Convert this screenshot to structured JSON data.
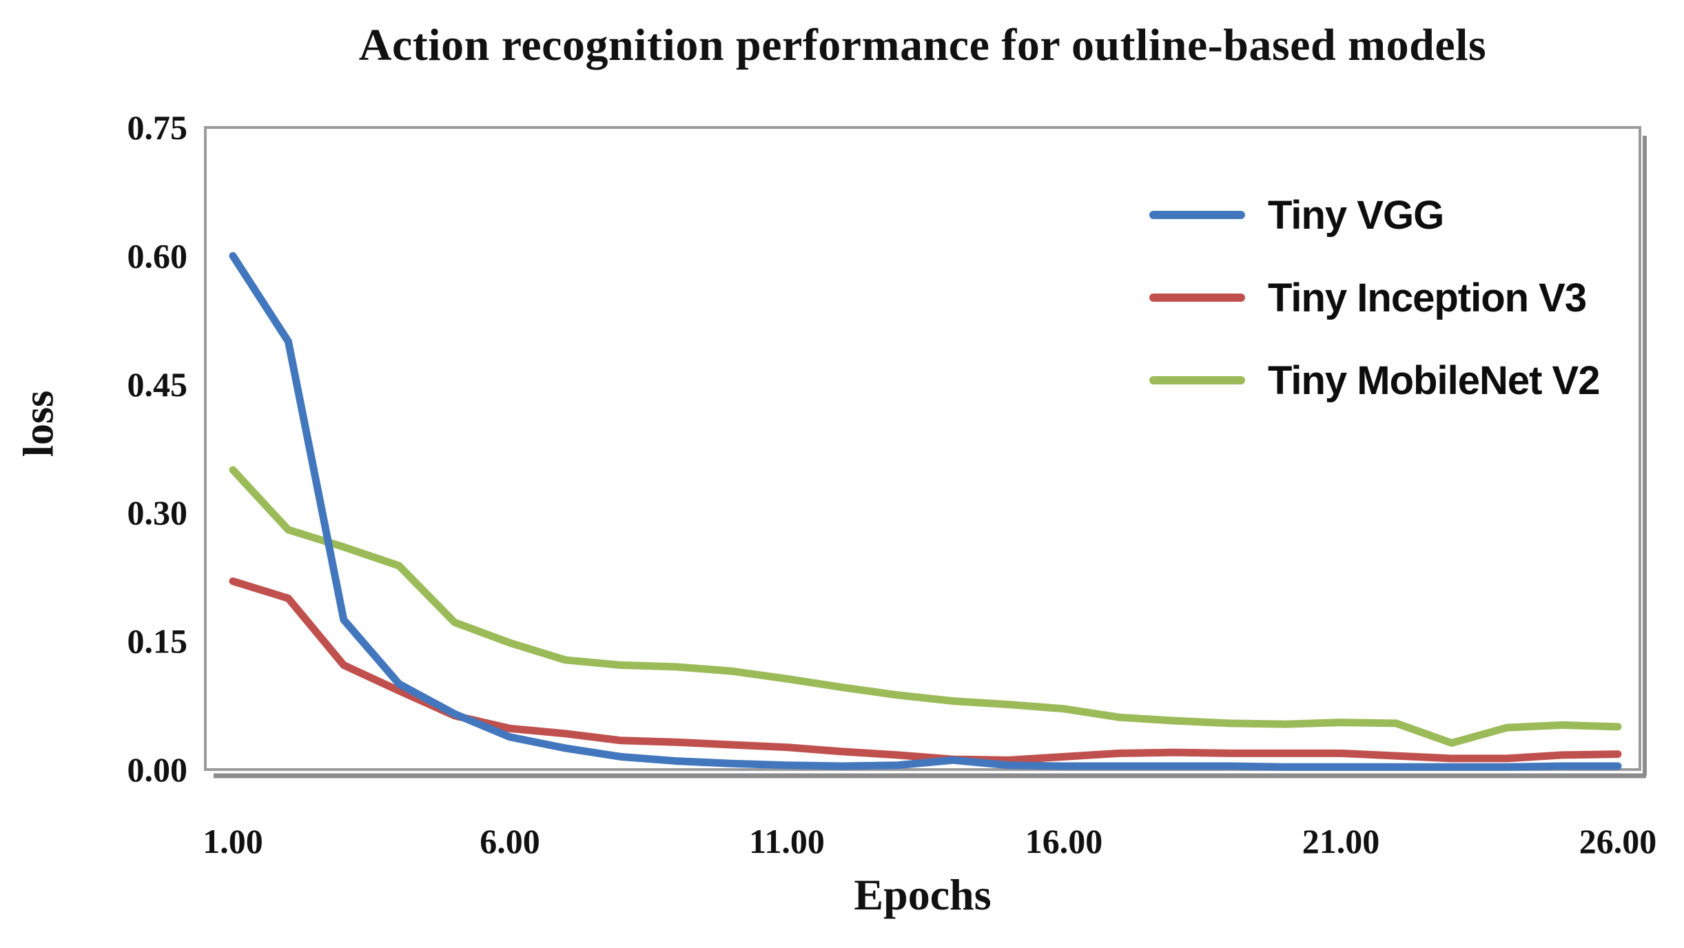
{
  "chart_data": {
    "type": "line",
    "title": "Action recognition performance for outline-based models",
    "xlabel": "Epochs",
    "ylabel": "loss",
    "grid": false,
    "legend_position": "upper-right-inside",
    "xlim": [
      1,
      26
    ],
    "ylim": [
      0,
      0.75
    ],
    "xtick_values": [
      1,
      6,
      11,
      16,
      21,
      26
    ],
    "xtick_labels": [
      "1.00",
      "6.00",
      "11.00",
      "16.00",
      "21.00",
      "26.00"
    ],
    "ytick_values": [
      0,
      0.15,
      0.3,
      0.45,
      0.6,
      0.75
    ],
    "ytick_labels": [
      "0.00",
      "0.15",
      "0.30",
      "0.45",
      "0.60",
      "0.75"
    ],
    "x": [
      1,
      2,
      3,
      4,
      5,
      6,
      7,
      8,
      9,
      10,
      11,
      12,
      13,
      14,
      15,
      16,
      17,
      18,
      19,
      20,
      21,
      22,
      23,
      24,
      25,
      26
    ],
    "series": [
      {
        "name": "Tiny VGG",
        "color": "#4377bd",
        "values": [
          0.6,
          0.5,
          0.175,
          0.1,
          0.065,
          0.038,
          0.025,
          0.015,
          0.01,
          0.007,
          0.005,
          0.004,
          0.005,
          0.011,
          0.005,
          0.004,
          0.004,
          0.004,
          0.004,
          0.003,
          0.003,
          0.003,
          0.003,
          0.003,
          0.004,
          0.004
        ]
      },
      {
        "name": "Tiny Inception V3",
        "color": "#c0504d",
        "values": [
          0.22,
          0.2,
          0.122,
          0.092,
          0.063,
          0.048,
          0.042,
          0.034,
          0.032,
          0.029,
          0.026,
          0.021,
          0.017,
          0.012,
          0.011,
          0.015,
          0.019,
          0.02,
          0.019,
          0.019,
          0.019,
          0.016,
          0.013,
          0.013,
          0.017,
          0.018
        ]
      },
      {
        "name": "Tiny MobileNet V2",
        "color": "#9bbb59",
        "values": [
          0.35,
          0.28,
          0.26,
          0.238,
          0.172,
          0.148,
          0.128,
          0.122,
          0.12,
          0.115,
          0.106,
          0.096,
          0.087,
          0.08,
          0.076,
          0.071,
          0.061,
          0.057,
          0.054,
          0.053,
          0.055,
          0.054,
          0.031,
          0.049,
          0.052,
          0.05
        ]
      }
    ]
  }
}
